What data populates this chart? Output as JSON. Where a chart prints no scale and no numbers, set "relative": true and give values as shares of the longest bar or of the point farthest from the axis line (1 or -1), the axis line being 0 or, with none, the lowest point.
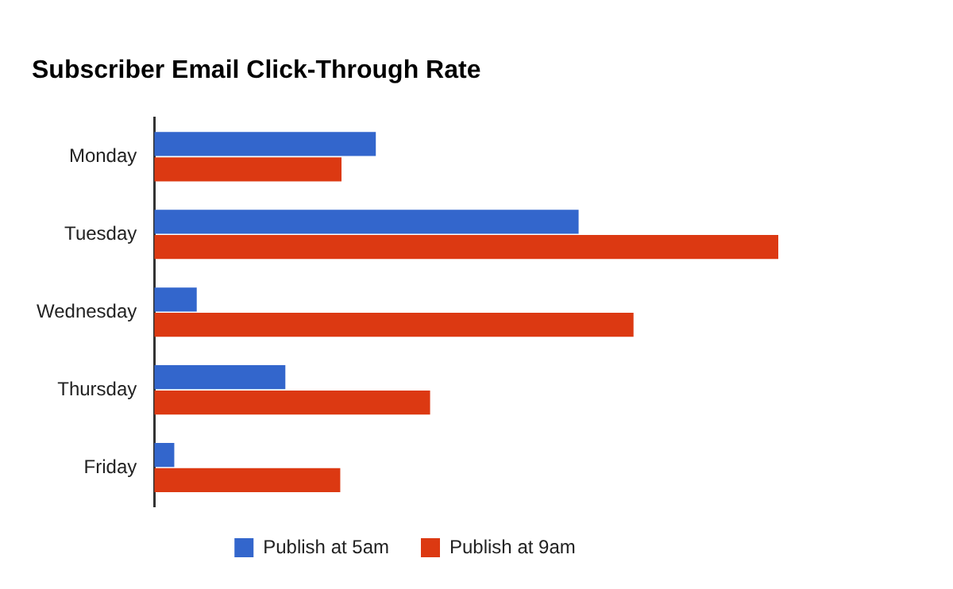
{
  "chart_data": {
    "type": "bar",
    "title": "Subscriber Email Click-Through Rate",
    "orientation": "horizontal",
    "relative": true,
    "legend": "bottom",
    "categories": [
      "Monday",
      "Tuesday",
      "Wednesday",
      "Thursday",
      "Friday"
    ],
    "series": [
      {
        "name": "Publish at 5am",
        "color": "#3366cc",
        "values": [
          0.355,
          0.68,
          0.068,
          0.21,
          0.032
        ]
      },
      {
        "name": "Publish at 9am",
        "color": "#dc3912",
        "values": [
          0.3,
          1,
          0.768,
          0.442,
          0.298
        ]
      }
    ]
  }
}
